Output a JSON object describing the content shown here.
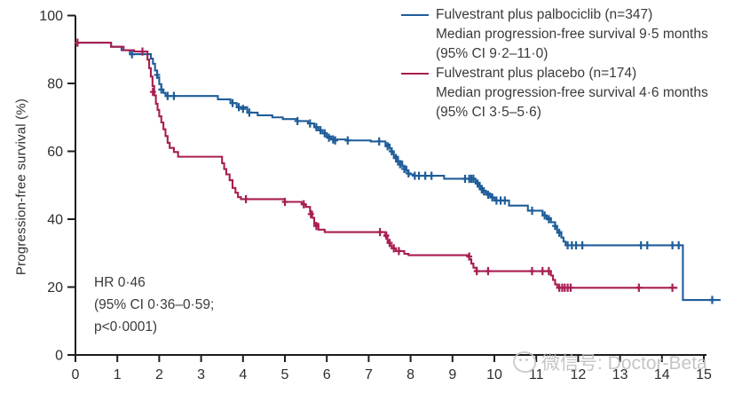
{
  "watermark": {
    "icon": "wechat-icon",
    "text": "微信号: Doctor-Beta"
  },
  "annotation": {
    "line1": "HR 0·46",
    "line2": "(95% CI 0·36–0·59;",
    "line3": "p<0·0001)"
  },
  "colors": {
    "palbociclib": "#1f5d99",
    "placebo": "#a81e52",
    "axis": "#1d1d1b",
    "tick_text": "#2e2e2e",
    "legend_text": "#3a3a3a",
    "watermark": "#bdbcbc"
  },
  "chart_data": {
    "type": "line",
    "subtype": "kaplan-meier-step",
    "title": "",
    "xlabel": "",
    "ylabel": "Progression-free survival (%)",
    "xlim": [
      0,
      15
    ],
    "ylim": [
      0,
      100
    ],
    "xticks": [
      0,
      1,
      2,
      3,
      4,
      5,
      6,
      7,
      8,
      9,
      10,
      11,
      12,
      13,
      14,
      15
    ],
    "yticks": [
      0,
      20,
      40,
      60,
      80,
      100
    ],
    "grid": false,
    "legend_position": "top-right",
    "series": [
      {
        "name": "Fulvestrant plus palbociclib (n=347)",
        "color_key": "palbociclib",
        "median_months": 9.5,
        "ci95": "9·2–11·0",
        "legend_lines": [
          "Fulvestrant plus palbociclib (n=347)",
          "Median progression-free survival 9·5 months",
          "(95% CI 9·2–11·0)"
        ],
        "steps": [
          [
            0,
            92
          ],
          [
            0.85,
            90.8
          ],
          [
            1.1,
            89.8
          ],
          [
            1.3,
            88.6
          ],
          [
            1.8,
            87.3
          ],
          [
            1.85,
            85.8
          ],
          [
            1.9,
            83.8
          ],
          [
            1.95,
            81.8
          ],
          [
            2.0,
            79.8
          ],
          [
            2.05,
            78.2
          ],
          [
            2.1,
            77.2
          ],
          [
            2.15,
            76.3
          ],
          [
            3.4,
            75.3
          ],
          [
            3.7,
            74.2
          ],
          [
            3.85,
            73.0
          ],
          [
            4.1,
            71.4
          ],
          [
            4.35,
            70.6
          ],
          [
            4.7,
            70.0
          ],
          [
            4.95,
            69.5
          ],
          [
            5.3,
            68.9
          ],
          [
            5.55,
            68.2
          ],
          [
            5.7,
            67.1
          ],
          [
            5.8,
            66.2
          ],
          [
            5.9,
            65.3
          ],
          [
            6.0,
            64.4
          ],
          [
            6.1,
            63.5
          ],
          [
            6.45,
            63.2
          ],
          [
            7.05,
            62.9
          ],
          [
            7.4,
            62.0
          ],
          [
            7.5,
            60.8
          ],
          [
            7.55,
            59.6
          ],
          [
            7.6,
            58.4
          ],
          [
            7.7,
            57.0
          ],
          [
            7.8,
            55.5
          ],
          [
            7.9,
            54.2
          ],
          [
            7.95,
            53.2
          ],
          [
            8.1,
            52.8
          ],
          [
            8.8,
            51.9
          ],
          [
            9.55,
            51.0
          ],
          [
            9.6,
            50.1
          ],
          [
            9.65,
            49.2
          ],
          [
            9.7,
            48.4
          ],
          [
            9.8,
            47.6
          ],
          [
            9.9,
            46.8
          ],
          [
            9.95,
            46.1
          ],
          [
            10.05,
            45.5
          ],
          [
            10.35,
            44.0
          ],
          [
            10.8,
            42.5
          ],
          [
            11.15,
            41.1
          ],
          [
            11.25,
            40.3
          ],
          [
            11.35,
            39.1
          ],
          [
            11.45,
            37.5
          ],
          [
            11.5,
            36.2
          ],
          [
            11.6,
            34.6
          ],
          [
            11.65,
            33.4
          ],
          [
            11.7,
            32.3
          ],
          [
            14.5,
            16.2
          ],
          [
            15.4,
            16.2
          ]
        ],
        "censors": [
          [
            1.35,
            88.6
          ],
          [
            1.95,
            82.5
          ],
          [
            2.05,
            78.2
          ],
          [
            2.2,
            76.3
          ],
          [
            2.35,
            76.3
          ],
          [
            3.75,
            74.2
          ],
          [
            3.9,
            73.0
          ],
          [
            4.0,
            72.5
          ],
          [
            4.15,
            71.4
          ],
          [
            5.3,
            68.9
          ],
          [
            5.6,
            68.2
          ],
          [
            5.75,
            67.1
          ],
          [
            5.85,
            66.2
          ],
          [
            5.95,
            65.3
          ],
          [
            6.05,
            64.0
          ],
          [
            6.15,
            63.5
          ],
          [
            6.2,
            63.2
          ],
          [
            6.5,
            63.2
          ],
          [
            7.25,
            62.9
          ],
          [
            7.45,
            61.5
          ],
          [
            7.55,
            60.0
          ],
          [
            7.65,
            58.0
          ],
          [
            7.7,
            57.0
          ],
          [
            7.75,
            56.2
          ],
          [
            7.85,
            54.8
          ],
          [
            7.95,
            53.5
          ],
          [
            8.1,
            52.8
          ],
          [
            8.2,
            52.8
          ],
          [
            8.35,
            52.8
          ],
          [
            8.5,
            52.8
          ],
          [
            9.3,
            51.9
          ],
          [
            9.4,
            51.9
          ],
          [
            9.45,
            51.9
          ],
          [
            9.5,
            51.9
          ],
          [
            9.6,
            50.5
          ],
          [
            9.65,
            49.8
          ],
          [
            9.7,
            48.8
          ],
          [
            9.75,
            48.2
          ],
          [
            9.85,
            47.2
          ],
          [
            9.95,
            46.4
          ],
          [
            10.05,
            45.5
          ],
          [
            10.15,
            45.5
          ],
          [
            10.25,
            45.5
          ],
          [
            10.9,
            42.5
          ],
          [
            11.2,
            41.1
          ],
          [
            11.3,
            40.0
          ],
          [
            11.45,
            38.0
          ],
          [
            11.55,
            36.0
          ],
          [
            11.75,
            32.3
          ],
          [
            11.85,
            32.3
          ],
          [
            11.95,
            32.3
          ],
          [
            12.1,
            32.3
          ],
          [
            13.5,
            32.3
          ],
          [
            13.65,
            32.3
          ],
          [
            14.25,
            32.3
          ],
          [
            14.4,
            32.3
          ],
          [
            15.2,
            16.2
          ]
        ]
      },
      {
        "name": "Fulvestrant plus placebo (n=174)",
        "color_key": "placebo",
        "median_months": 4.6,
        "ci95": "3·5–5·6",
        "legend_lines": [
          "Fulvestrant plus placebo (n=174)",
          "Median progression-free survival 4·6 months",
          "(95% CI 3·5–5·6)"
        ],
        "steps": [
          [
            0,
            92
          ],
          [
            0.85,
            90.8
          ],
          [
            1.15,
            89.8
          ],
          [
            1.4,
            89.4
          ],
          [
            1.72,
            87.0
          ],
          [
            1.76,
            84.5
          ],
          [
            1.8,
            82.0
          ],
          [
            1.84,
            79.2
          ],
          [
            1.88,
            76.5
          ],
          [
            1.92,
            74.0
          ],
          [
            1.96,
            72.2
          ],
          [
            2.0,
            70.3
          ],
          [
            2.05,
            68.5
          ],
          [
            2.1,
            66.5
          ],
          [
            2.15,
            64.5
          ],
          [
            2.2,
            62.5
          ],
          [
            2.25,
            61.0
          ],
          [
            2.35,
            59.8
          ],
          [
            2.45,
            58.4
          ],
          [
            3.5,
            56.5
          ],
          [
            3.55,
            54.8
          ],
          [
            3.6,
            53.2
          ],
          [
            3.68,
            51.5
          ],
          [
            3.75,
            49.2
          ],
          [
            3.82,
            47.8
          ],
          [
            3.88,
            46.5
          ],
          [
            3.95,
            45.9
          ],
          [
            5.0,
            45.1
          ],
          [
            5.4,
            44.4
          ],
          [
            5.5,
            43.6
          ],
          [
            5.6,
            42.2
          ],
          [
            5.65,
            40.4
          ],
          [
            5.7,
            38.6
          ],
          [
            5.8,
            36.9
          ],
          [
            5.95,
            36.2
          ],
          [
            7.4,
            34.9
          ],
          [
            7.45,
            33.5
          ],
          [
            7.5,
            32.3
          ],
          [
            7.55,
            31.4
          ],
          [
            7.65,
            30.6
          ],
          [
            7.85,
            29.8
          ],
          [
            7.95,
            29.4
          ],
          [
            9.4,
            28.2
          ],
          [
            9.45,
            26.9
          ],
          [
            9.5,
            25.7
          ],
          [
            9.57,
            24.7
          ],
          [
            11.35,
            23.4
          ],
          [
            11.4,
            22.1
          ],
          [
            11.45,
            20.8
          ],
          [
            11.5,
            19.8
          ],
          [
            14.37,
            19.8
          ]
        ],
        "censors": [
          [
            0.05,
            92
          ],
          [
            1.6,
            89.4
          ],
          [
            1.85,
            77.5
          ],
          [
            4.07,
            45.9
          ],
          [
            5.0,
            45.1
          ],
          [
            5.45,
            44.4
          ],
          [
            5.62,
            41.5
          ],
          [
            5.75,
            38.0
          ],
          [
            7.27,
            36.2
          ],
          [
            7.42,
            35.2
          ],
          [
            7.5,
            33.0
          ],
          [
            7.6,
            31.4
          ],
          [
            7.72,
            30.6
          ],
          [
            9.4,
            29.0
          ],
          [
            9.58,
            24.7
          ],
          [
            9.85,
            24.7
          ],
          [
            10.9,
            24.7
          ],
          [
            11.15,
            24.7
          ],
          [
            11.3,
            24.7
          ],
          [
            11.55,
            19.8
          ],
          [
            11.62,
            19.8
          ],
          [
            11.68,
            19.8
          ],
          [
            11.75,
            19.8
          ],
          [
            11.82,
            19.8
          ],
          [
            13.45,
            19.8
          ],
          [
            14.25,
            19.8
          ]
        ]
      }
    ]
  }
}
